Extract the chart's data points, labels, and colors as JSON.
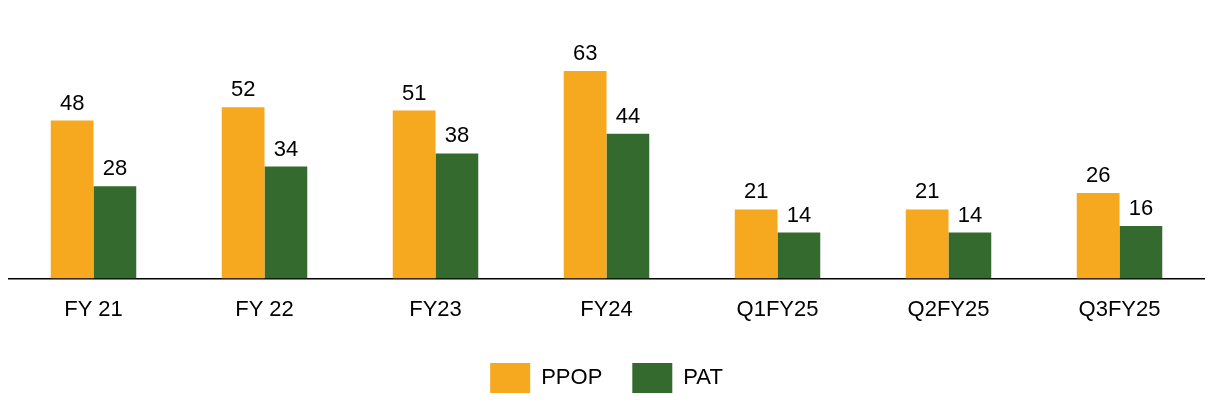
{
  "chart_data": {
    "type": "bar",
    "categories": [
      "FY 21",
      "FY 22",
      "FY23",
      "FY24",
      "Q1FY25",
      "Q2FY25",
      "Q3FY25"
    ],
    "series": [
      {
        "name": "PPOP",
        "color": "#f6a81e",
        "values": [
          48,
          52,
          51,
          63,
          21,
          21,
          26
        ]
      },
      {
        "name": "PAT",
        "color": "#356a2e",
        "values": [
          28,
          34,
          38,
          44,
          14,
          14,
          16
        ]
      }
    ],
    "data_labels": true,
    "grid": false,
    "legend": "bottom"
  }
}
